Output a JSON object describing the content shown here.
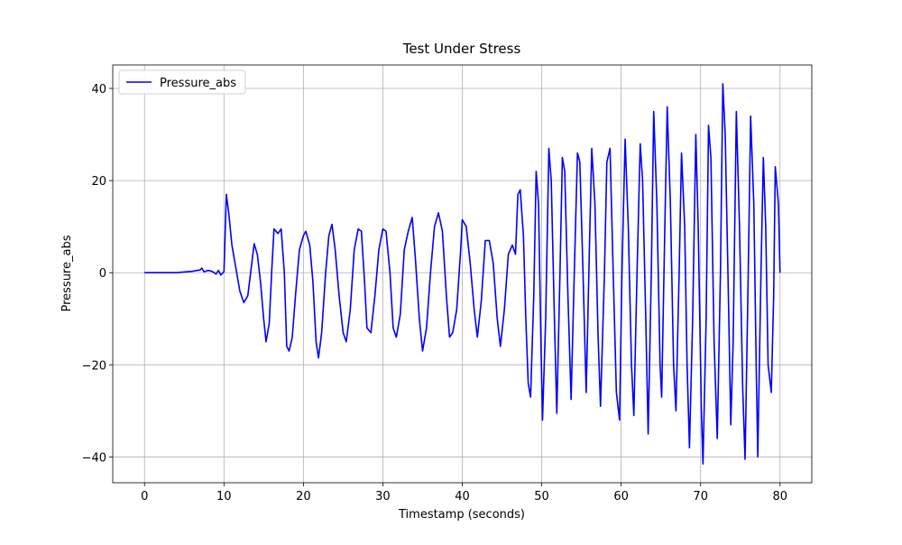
{
  "chart_data": {
    "type": "line",
    "title": "Test Under Stress",
    "x_label": "Timestamp (seconds)",
    "y_label": "Pressure_abs",
    "x": [
      0,
      2,
      4,
      6,
      7,
      7.2,
      7.5,
      8,
      8.5,
      9,
      9.3,
      9.6,
      10,
      10.3,
      10.6,
      11,
      11.5,
      12,
      12.5,
      13,
      13.5,
      13.8,
      14.2,
      14.6,
      15,
      15.3,
      15.7,
      16,
      16.3,
      16.8,
      17.2,
      17.6,
      17.9,
      18.2,
      18.6,
      19,
      19.5,
      20,
      20.3,
      20.8,
      21.2,
      21.6,
      21.9,
      22.3,
      22.8,
      23.2,
      23.6,
      24,
      24.5,
      25,
      25.4,
      25.9,
      26.4,
      26.9,
      27.3,
      27.7,
      28,
      28.5,
      29,
      29.5,
      30,
      30.4,
      30.9,
      31.3,
      31.7,
      32.2,
      32.7,
      33.2,
      33.7,
      34.1,
      34.6,
      35,
      35.5,
      36,
      36.5,
      37,
      37.5,
      38,
      38.4,
      38.8,
      39.3,
      39.8,
      40,
      40.5,
      41,
      41.5,
      41.9,
      42.4,
      42.9,
      43.4,
      43.9,
      44.4,
      44.8,
      45.3,
      45.8,
      46.3,
      46.7,
      47,
      47.3,
      47.7,
      48,
      48.3,
      48.6,
      49,
      49.3,
      49.6,
      49.9,
      50.1,
      50.5,
      50.9,
      51.2,
      51.6,
      51.9,
      52.3,
      52.6,
      52.9,
      53.3,
      53.7,
      54.1,
      54.5,
      54.8,
      55.2,
      55.6,
      56,
      56.3,
      56.7,
      57.1,
      57.4,
      57.9,
      58.2,
      58.6,
      59,
      59.4,
      59.8,
      60.1,
      60.5,
      60.9,
      61.3,
      61.6,
      62,
      62.4,
      62.7,
      63.1,
      63.4,
      63.8,
      64.1,
      64.5,
      64.9,
      65.1,
      65.5,
      65.8,
      66.2,
      66.6,
      66.9,
      67.3,
      67.6,
      68,
      68.3,
      68.6,
      69,
      69.4,
      69.7,
      70.1,
      70.3,
      70.7,
      71,
      71.3,
      71.7,
      72.1,
      72.5,
      72.8,
      73.1,
      73.5,
      73.8,
      74.1,
      74.5,
      74.9,
      75.3,
      75.6,
      76,
      76.3,
      76.7,
      77,
      77.2,
      77.6,
      77.9,
      78.2,
      78.5,
      78.9,
      79.2,
      79.4,
      79.8,
      80
    ],
    "series": [
      {
        "name": "Pressure_abs",
        "color": "#0000ff",
        "values": [
          0,
          0,
          0,
          0.3,
          0.6,
          1,
          0.2,
          0.5,
          0.3,
          -0.3,
          0.5,
          -0.5,
          0.2,
          17,
          13,
          6,
          1,
          -4,
          -6.5,
          -5,
          2,
          6.3,
          4,
          -2,
          -10,
          -15,
          -11,
          0,
          9.5,
          8.5,
          9.5,
          0,
          -16,
          -17,
          -14,
          -5,
          5,
          8,
          9,
          6,
          -2,
          -15,
          -18.5,
          -13,
          0,
          8,
          10.5,
          5,
          -5,
          -13,
          -15,
          -8,
          5,
          9.5,
          9,
          -2,
          -12,
          -13,
          -5,
          5,
          9.5,
          9,
          0,
          -12,
          -14,
          -9,
          5,
          9,
          12,
          3,
          -10,
          -17,
          -12,
          0,
          10,
          13,
          9,
          -5,
          -14,
          -13,
          -8,
          5,
          11.5,
          10,
          2,
          -8,
          -14,
          -6,
          7,
          7,
          2,
          -10,
          -16,
          -8,
          4,
          6,
          4,
          17,
          18,
          8,
          -10,
          -24,
          -27,
          -5,
          22,
          15,
          -15,
          -32,
          -10,
          27,
          20,
          -10,
          -30.5,
          0,
          25,
          22,
          -5,
          -27.5,
          0,
          26,
          24,
          0,
          -26,
          5,
          27,
          15,
          -14,
          -29,
          0,
          24,
          27,
          0,
          -26,
          -32,
          0,
          29,
          10,
          -20,
          -31,
          0,
          28,
          20,
          -10,
          -35,
          0,
          35,
          15,
          -20,
          -27,
          10,
          36,
          15,
          -20,
          -30,
          0,
          26,
          10,
          -20,
          -38,
          -10,
          30,
          10,
          -30,
          -41.5,
          -10,
          32,
          25,
          -15,
          -36,
          0,
          41,
          30,
          -5,
          -33,
          -15,
          35,
          10,
          -25,
          -40.5,
          0,
          34,
          15,
          -20,
          -40,
          0,
          25,
          10,
          -20,
          -26,
          -5,
          23,
          15,
          0
        ]
      }
    ],
    "xlim": [
      -4,
      84
    ],
    "ylim": [
      -45.6,
      45.1
    ],
    "xticks": [
      0,
      10,
      20,
      30,
      40,
      50,
      60,
      70,
      80
    ],
    "yticks": [
      {
        "value": -40,
        "label": "−40"
      },
      {
        "value": -20,
        "label": "−20"
      },
      0,
      20,
      40
    ],
    "grid": true,
    "legend": "upper left"
  }
}
